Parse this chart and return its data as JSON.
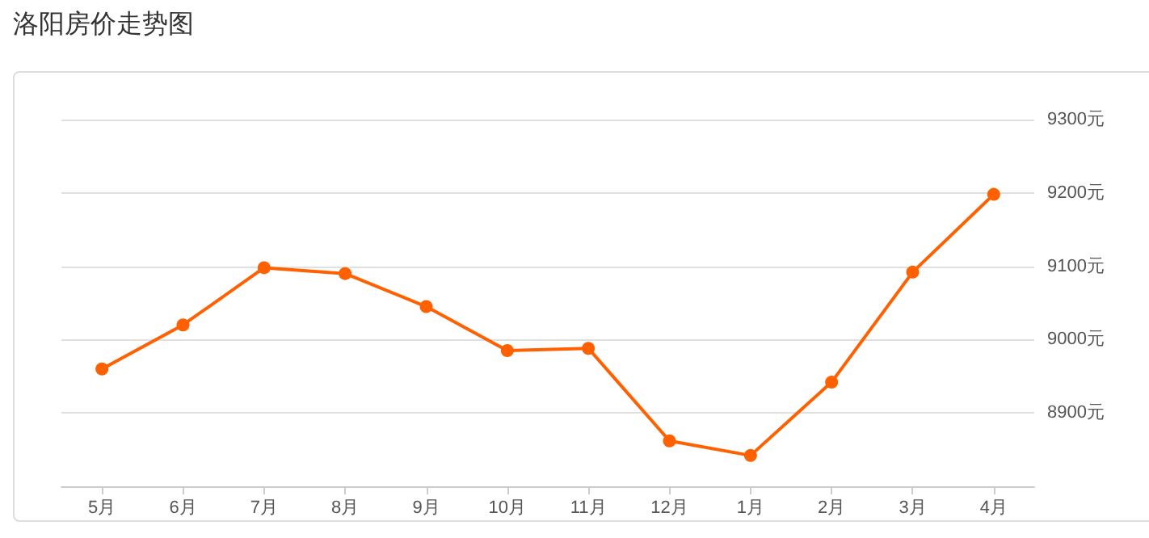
{
  "chart_data": {
    "type": "line",
    "title": "洛阳房价走势图",
    "categories": [
      "5月",
      "6月",
      "7月",
      "8月",
      "9月",
      "10月",
      "11月",
      "12月",
      "1月",
      "2月",
      "3月",
      "4月"
    ],
    "series": [
      {
        "color": "#ff6000",
        "values": [
          8960,
          9020,
          9098,
          9090,
          9045,
          8985,
          8988,
          8862,
          8842,
          8942,
          9092,
          9198
        ]
      }
    ],
    "ylim": [
      8800,
      9300
    ],
    "yticks": [
      {
        "value": 8900,
        "label": "8900元"
      },
      {
        "value": 9000,
        "label": "9000元"
      },
      {
        "value": 9100,
        "label": "9100元"
      },
      {
        "value": 9200,
        "label": "9200元"
      },
      {
        "value": 9300,
        "label": "9300元"
      }
    ],
    "grid": "y",
    "marker": "circle",
    "line_style": "solid"
  }
}
